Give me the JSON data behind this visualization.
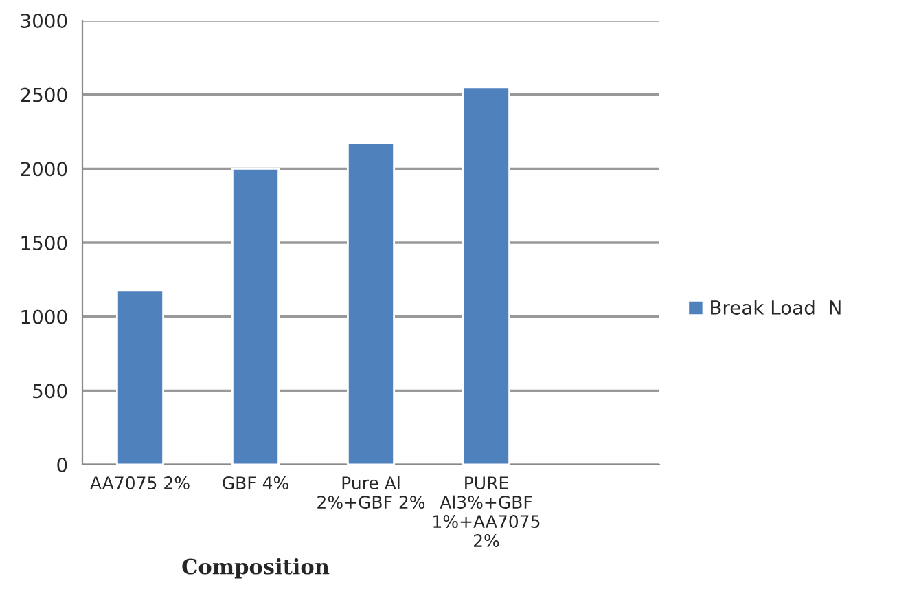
{
  "chart_data": {
    "type": "bar",
    "xlabel": "Composition",
    "categories": [
      "AA7075 2%",
      "GBF 4%",
      "Pure Al\n2%+GBF 2%",
      "PURE\nAl3%+GBF\n1%+AA7075\n2%",
      null
    ],
    "series": [
      {
        "name": "Break Load  N",
        "color": "#4f81bd",
        "values": [
          1175,
          2000,
          2170,
          2550,
          null
        ]
      }
    ],
    "ylim": [
      0,
      3000
    ],
    "yticks": [
      0,
      500,
      1000,
      1500,
      2000,
      2500,
      3000
    ],
    "grid": "y",
    "legend": "right"
  }
}
